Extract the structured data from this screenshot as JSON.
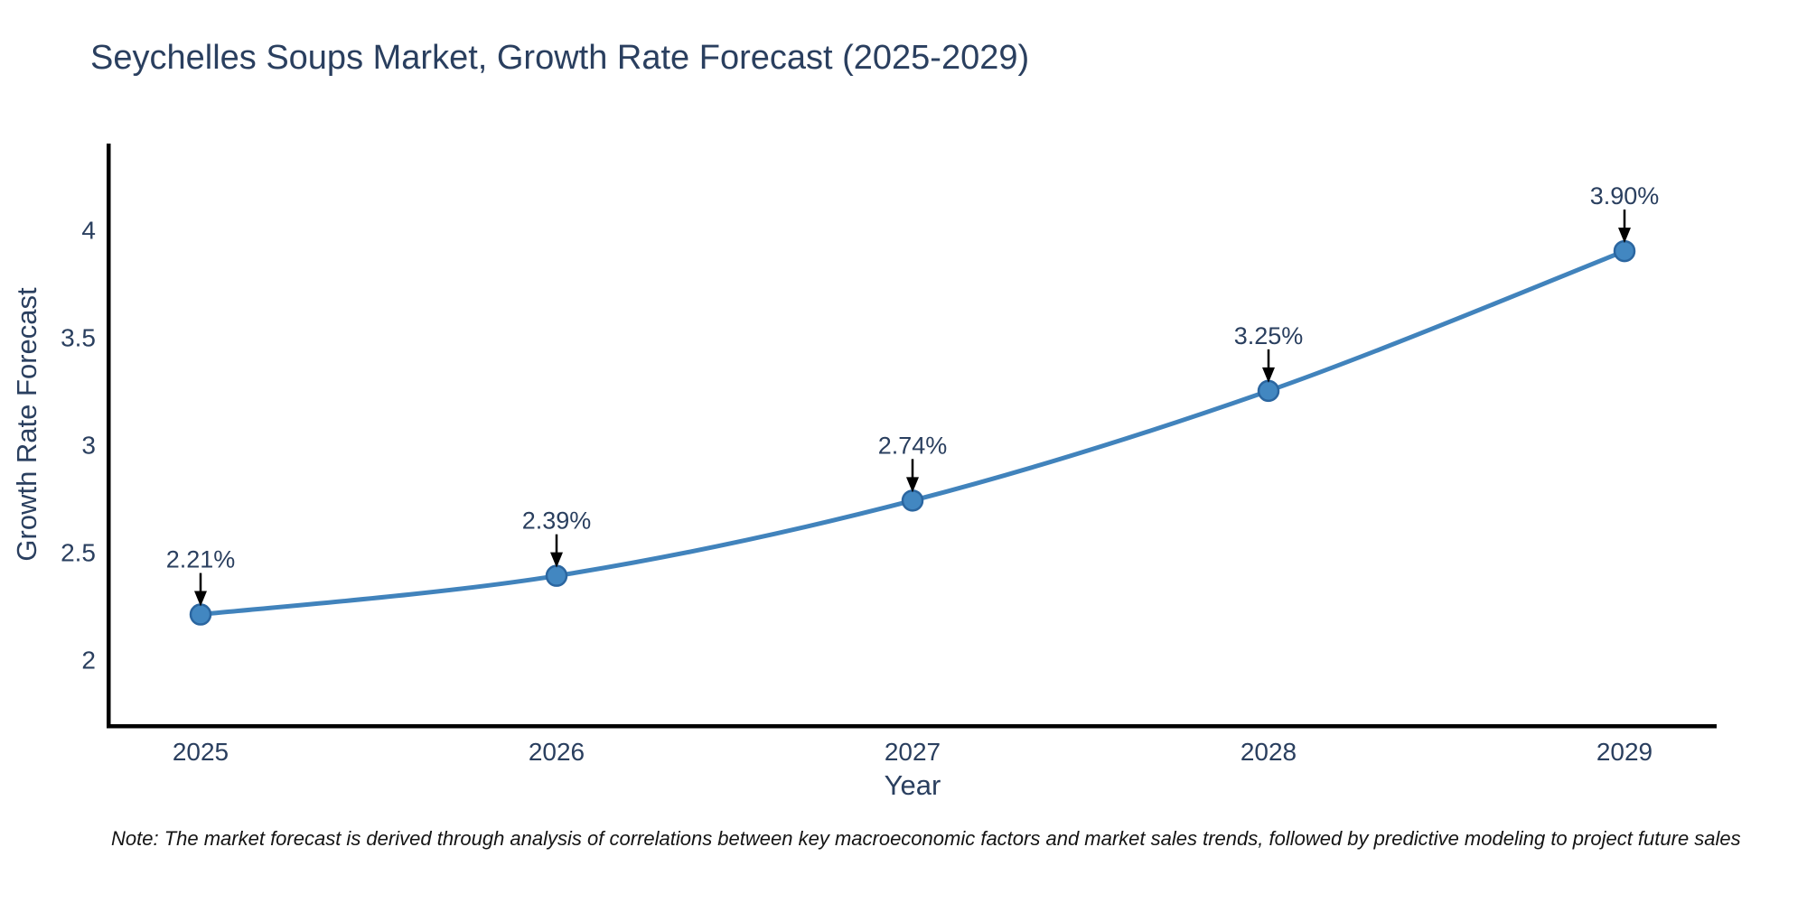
{
  "page": {
    "background": "#ffffff"
  },
  "chart_data": {
    "type": "line",
    "title": "Seychelles Soups Market, Growth Rate Forecast (2025-2029)",
    "xlabel": "Year",
    "ylabel": "Growth Rate Forecast",
    "categories": [
      "2025",
      "2026",
      "2027",
      "2028",
      "2029"
    ],
    "series": [
      {
        "name": "Growth Rate Forecast",
        "values": [
          2.21,
          2.39,
          2.74,
          3.25,
          3.9
        ]
      }
    ],
    "point_labels": [
      "2.21%",
      "2.39%",
      "2.74%",
      "3.25%",
      "3.90%"
    ],
    "yticks": [
      2,
      2.5,
      3,
      3.5,
      4
    ],
    "ytick_labels": [
      "2",
      "2.5",
      "3",
      "3.5",
      "4"
    ],
    "ylim": [
      1.7,
      4.4
    ],
    "grid": false,
    "legend": "none",
    "line_shape": "spline",
    "colors": {
      "line": "#4183bc",
      "marker_fill": "#4287c1",
      "marker_edge": "#2b66a0",
      "arrow": "#000000",
      "axis": "#000000",
      "text": "#2a3f5f"
    }
  },
  "footnote": {
    "text": "Note: The market forecast is derived through analysis of correlations between key macroeconomic factors and market sales trends, followed by predictive modeling to project future sales"
  }
}
